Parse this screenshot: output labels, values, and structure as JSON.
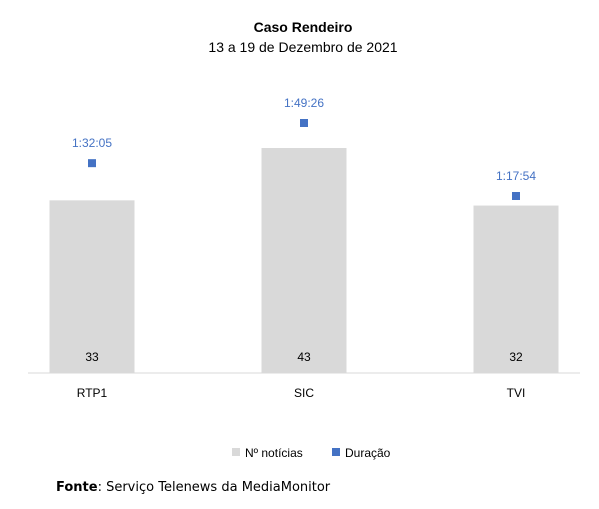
{
  "chart_data": {
    "type": "bar",
    "title": "Caso Rendeiro",
    "subtitle": "13 a 19 de Dezembro de 2021",
    "categories": [
      "RTP1",
      "SIC",
      "TVI"
    ],
    "series": [
      {
        "name": "Nº notícias",
        "type": "bar",
        "color": "#d9d9d9",
        "values": [
          33,
          43,
          32
        ]
      },
      {
        "name": "Duração",
        "type": "marker",
        "color": "#4472c4",
        "values": [
          "1:32:05",
          "1:49:26",
          "1:17:54"
        ],
        "seconds": [
          5525,
          6566,
          4674
        ]
      }
    ],
    "ylim": [
      0,
      47
    ],
    "grid": false,
    "legend": "bottom"
  },
  "source": {
    "label": "Fonte",
    "text": ": Serviço Telenews da MediaMonitor"
  }
}
